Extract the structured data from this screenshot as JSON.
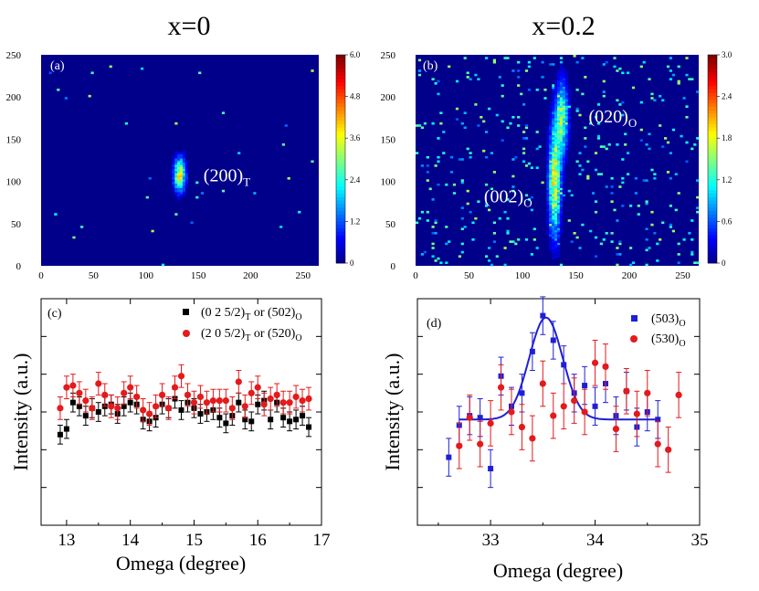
{
  "figure": {
    "titles": [
      "x=0",
      "x=0.2"
    ]
  },
  "chart_data": [
    {
      "id": "a",
      "type": "heatmap",
      "panel_label": "(a)",
      "title": "x=0",
      "x_ticks": [
        "0",
        "50",
        "100",
        "150",
        "200",
        "250"
      ],
      "y_ticks": [
        "0",
        "50",
        "100",
        "150",
        "200",
        "250"
      ],
      "xlim": [
        0,
        265
      ],
      "ylim": [
        0,
        250
      ],
      "colorbar_ticks": [
        "6.0",
        "4.8",
        "3.6",
        "2.4",
        "1.2",
        "0"
      ],
      "colorbar_range": [
        0,
        6.0
      ],
      "peaks": [
        {
          "x": 131,
          "y": 107,
          "sx": 4,
          "sy": 14,
          "max": 4.6
        }
      ],
      "annotation": {
        "main": "(200)",
        "sub": "T",
        "x": 155,
        "y": 100
      }
    },
    {
      "id": "b",
      "type": "heatmap",
      "panel_label": "(b)",
      "title": "x=0.2",
      "x_ticks": [
        "0",
        "50",
        "100",
        "150",
        "200",
        "250"
      ],
      "y_ticks": [
        "0",
        "50",
        "100",
        "150",
        "200",
        "250"
      ],
      "xlim": [
        0,
        265
      ],
      "ylim": [
        0,
        250
      ],
      "colorbar_ticks": [
        "3.0",
        "2.4",
        "1.8",
        "1.2",
        "0.6",
        "0"
      ],
      "colorbar_range": [
        0,
        3.0
      ],
      "peaks": [
        {
          "x": 129,
          "y": 100,
          "sx": 4,
          "sy": 45,
          "max": 2.3
        },
        {
          "x": 136,
          "y": 175,
          "sx": 4,
          "sy": 30,
          "max": 1.8
        }
      ],
      "annotations": [
        {
          "main": "(020)",
          "sub": "O",
          "x": 162,
          "y": 170
        },
        {
          "main": "(002)",
          "sub": "O",
          "x": 64,
          "y": 75
        }
      ]
    },
    {
      "id": "c",
      "type": "scatter",
      "panel_label": "(c)",
      "xlabel": "Omega (degree)",
      "ylabel": "Intensity (a.u.)",
      "xlim": [
        12.6,
        17
      ],
      "ylim": [
        0,
        12
      ],
      "x_ticks": [
        "13",
        "14",
        "15",
        "16",
        "17"
      ],
      "series": [
        {
          "name": "(0 2 5/2)",
          "name_sub": "T",
          "name_tail": " or (502)",
          "name_tail_sub": "O",
          "color": "#000000",
          "marker": "square",
          "x": [
            12.9,
            13.0,
            13.1,
            13.2,
            13.3,
            13.4,
            13.5,
            13.6,
            13.7,
            13.8,
            13.9,
            14.0,
            14.1,
            14.2,
            14.3,
            14.4,
            14.5,
            14.6,
            14.7,
            14.8,
            14.9,
            15.0,
            15.1,
            15.2,
            15.3,
            15.4,
            15.5,
            15.6,
            15.7,
            15.8,
            15.9,
            16.0,
            16.1,
            16.2,
            16.3,
            16.4,
            16.5,
            16.6,
            16.7,
            16.8
          ],
          "y": [
            4.8,
            5.1,
            6.5,
            6.3,
            5.8,
            6.2,
            6.0,
            6.3,
            6.4,
            5.9,
            6.3,
            6.5,
            6.4,
            5.6,
            5.5,
            5.7,
            6.4,
            6.2,
            6.7,
            6.1,
            6.5,
            6.2,
            5.9,
            6.0,
            6.1,
            5.7,
            5.4,
            5.8,
            6.5,
            5.6,
            5.5,
            6.4,
            6.6,
            5.6,
            6.5,
            5.7,
            5.5,
            5.6,
            5.8,
            5.2
          ],
          "err": [
            0.5,
            0.5,
            0.5,
            0.5,
            0.5,
            0.5,
            0.5,
            0.5,
            0.5,
            0.5,
            0.5,
            0.5,
            0.5,
            0.5,
            0.5,
            0.5,
            0.5,
            0.5,
            0.5,
            0.5,
            0.5,
            0.5,
            0.5,
            0.5,
            0.5,
            0.5,
            0.5,
            0.5,
            0.5,
            0.5,
            0.5,
            0.5,
            0.5,
            0.5,
            0.5,
            0.5,
            0.5,
            0.5,
            0.5,
            0.5
          ],
          "x_cross": [
            12.95,
            13.05,
            13.15,
            13.25,
            13.35,
            13.45,
            13.55,
            13.65,
            13.75,
            13.85,
            13.95,
            14.05,
            14.15,
            14.25,
            14.35,
            14.45,
            14.55,
            14.65,
            14.75,
            14.85,
            14.95,
            15.05,
            15.15,
            15.25,
            15.35,
            15.45,
            15.55,
            15.65,
            15.75,
            15.85,
            15.95,
            16.05,
            16.15,
            16.25,
            16.35,
            16.45,
            16.55,
            16.65,
            16.75
          ],
          "_note": ""
        },
        {
          "name": "(2 0 5/2)",
          "name_sub": "T",
          "name_tail": " or (520)",
          "name_tail_sub": "O",
          "color": "#e41a1c",
          "marker": "circle",
          "x": [
            12.9,
            13.0,
            13.1,
            13.2,
            13.3,
            13.4,
            13.5,
            13.6,
            13.7,
            13.8,
            13.9,
            14.0,
            14.1,
            14.2,
            14.3,
            14.4,
            14.5,
            14.6,
            14.7,
            14.8,
            14.9,
            15.0,
            15.1,
            15.2,
            15.3,
            15.4,
            15.5,
            15.6,
            15.7,
            15.8,
            15.9,
            16.0,
            16.1,
            16.2,
            16.3,
            16.4,
            16.5,
            16.6,
            16.7,
            16.8
          ],
          "y": [
            6.2,
            7.3,
            7.4,
            7.0,
            6.6,
            6.2,
            7.5,
            6.9,
            6.3,
            6.2,
            7.0,
            7.3,
            6.8,
            6.1,
            5.9,
            6.3,
            6.9,
            6.2,
            7.3,
            7.9,
            6.9,
            6.5,
            6.8,
            6.5,
            6.6,
            6.6,
            6.6,
            6.2,
            7.6,
            6.3,
            7.0,
            7.3,
            6.4,
            6.7,
            6.9,
            6.5,
            6.5,
            6.8,
            6.6,
            6.7
          ],
          "err": [
            0.6,
            0.6,
            0.6,
            0.6,
            0.6,
            0.6,
            0.6,
            0.6,
            0.6,
            0.6,
            0.6,
            0.6,
            0.6,
            0.6,
            0.6,
            0.6,
            0.6,
            0.6,
            0.6,
            0.6,
            0.6,
            0.6,
            0.6,
            0.6,
            0.6,
            0.6,
            0.6,
            0.6,
            0.6,
            0.6,
            0.6,
            0.6,
            0.6,
            0.6,
            0.6,
            0.6,
            0.6,
            0.6,
            0.6,
            0.6
          ]
        }
      ]
    },
    {
      "id": "d",
      "type": "scatter",
      "panel_label": "(d)",
      "xlabel": "Omega (degree)",
      "ylabel": "Intensity (a.u.)",
      "xlim": [
        32.3,
        35
      ],
      "ylim": [
        0,
        12
      ],
      "x_ticks": [
        "33",
        "34",
        "35"
      ],
      "series": [
        {
          "name": "(503)",
          "name_sub": "O",
          "color": "#1f1fd6",
          "marker": "square",
          "x": [
            32.6,
            32.7,
            32.8,
            32.9,
            33.0,
            33.1,
            33.2,
            33.3,
            33.4,
            33.5,
            33.6,
            33.7,
            33.8,
            33.9,
            34.0,
            34.1,
            34.2,
            34.3,
            34.4,
            34.5,
            34.6
          ],
          "y": [
            3.6,
            5.3,
            5.8,
            5.7,
            3.0,
            7.9,
            6.3,
            7.0,
            9.2,
            11.1,
            9.8,
            8.5,
            7.0,
            7.4,
            6.3,
            7.5,
            5.8,
            7.1,
            5.2,
            6.0,
            5.6
          ],
          "err": [
            1.0,
            1.0,
            1.0,
            1.0,
            1.0,
            1.0,
            1.0,
            1.0,
            1.0,
            1.0,
            1.0,
            1.0,
            1.0,
            1.0,
            1.0,
            1.0,
            1.0,
            1.0,
            1.0,
            1.0,
            1.0
          ]
        },
        {
          "name": "(530)",
          "name_sub": "O",
          "color": "#e41a1c",
          "marker": "circle",
          "x": [
            32.7,
            32.8,
            32.9,
            33.0,
            33.1,
            33.2,
            33.3,
            33.4,
            33.5,
            33.6,
            33.7,
            33.8,
            33.9,
            34.0,
            34.1,
            34.2,
            34.3,
            34.4,
            34.5,
            34.6,
            34.7,
            34.8
          ],
          "y": [
            4.2,
            5.7,
            4.3,
            5.4,
            7.3,
            6.0,
            5.2,
            4.6,
            7.5,
            5.8,
            6.3,
            6.6,
            6.0,
            8.6,
            8.4,
            5.1,
            7.1,
            5.9,
            7.0,
            4.3,
            4.0,
            6.9
          ],
          "err": [
            1.2,
            1.2,
            1.2,
            1.2,
            1.2,
            1.2,
            1.2,
            1.2,
            1.2,
            1.2,
            1.2,
            1.2,
            1.2,
            1.2,
            1.2,
            1.2,
            1.2,
            1.2,
            1.2,
            1.2,
            1.2,
            1.2
          ]
        }
      ],
      "fit": {
        "type": "gaussian",
        "baseline": 5.6,
        "amplitude": 5.4,
        "center": 33.53,
        "sigma": 0.16,
        "color": "#1f1fd6",
        "x_range": [
          32.7,
          34.6
        ]
      }
    }
  ]
}
